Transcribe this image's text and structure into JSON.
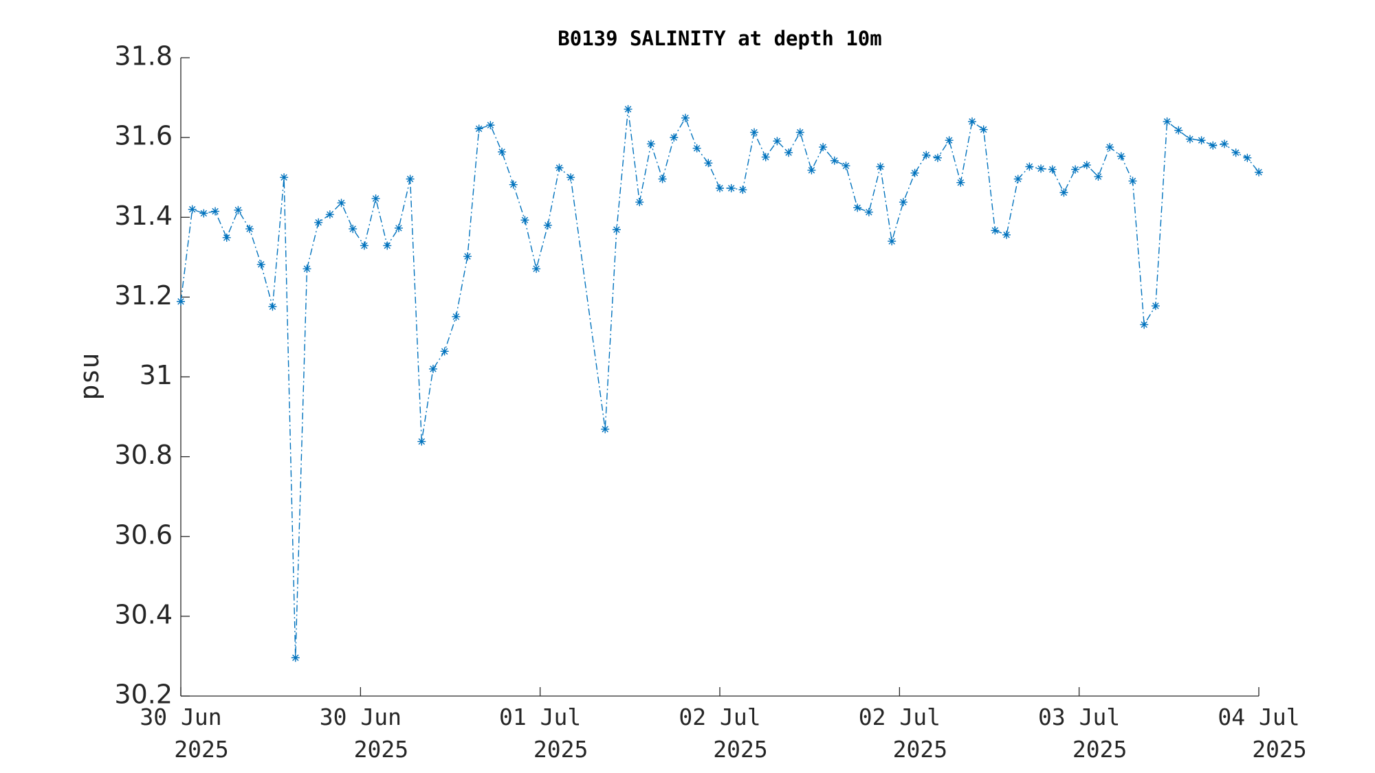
{
  "chart_data": {
    "type": "line",
    "title": "B0139 SALINITY at depth 10m",
    "ylabel": "psu",
    "x": [
      0,
      1,
      2,
      3,
      4,
      5,
      6,
      7,
      8,
      9,
      10,
      11,
      12,
      13,
      14,
      15,
      16,
      17,
      18,
      19,
      20,
      21,
      22,
      23,
      24,
      25,
      26,
      27,
      28,
      29,
      30,
      31,
      32,
      33,
      34,
      37,
      38,
      39,
      40,
      41,
      42,
      43,
      44,
      45,
      46,
      47,
      48,
      49,
      50,
      51,
      52,
      53,
      54,
      55,
      56,
      57,
      58,
      59,
      60,
      61,
      62,
      63,
      64,
      65,
      66,
      67,
      68,
      69,
      70,
      71,
      72,
      73,
      74,
      75,
      76,
      77,
      78,
      79,
      80,
      81,
      82,
      83,
      84,
      85,
      86,
      87,
      88,
      89,
      90,
      91,
      92,
      93,
      94
    ],
    "series": [
      {
        "color": "#0072bd",
        "values": [
          31.189,
          31.42,
          31.41,
          31.415,
          31.349,
          31.418,
          31.371,
          31.282,
          31.176,
          31.5,
          30.296,
          31.271,
          31.387,
          31.407,
          31.436,
          31.371,
          31.329,
          31.447,
          31.329,
          31.373,
          31.496,
          30.838,
          31.02,
          31.064,
          31.151,
          31.302,
          31.622,
          31.631,
          31.564,
          31.482,
          31.393,
          31.271,
          31.38,
          31.524,
          31.5,
          30.869,
          31.369,
          31.671,
          31.438,
          31.584,
          31.496,
          31.6,
          31.649,
          31.573,
          31.536,
          31.473,
          31.473,
          31.469,
          31.613,
          31.551,
          31.591,
          31.562,
          31.613,
          31.518,
          31.576,
          31.542,
          31.529,
          31.424,
          31.413,
          31.527,
          31.34,
          31.438,
          31.511,
          31.556,
          31.549,
          31.593,
          31.487,
          31.64,
          31.62,
          31.367,
          31.356,
          31.496,
          31.527,
          31.522,
          31.52,
          31.462,
          31.52,
          31.531,
          31.502,
          31.576,
          31.553,
          31.491,
          31.131,
          31.178,
          31.64,
          31.618,
          31.596,
          31.593,
          31.58,
          31.584,
          31.562,
          31.549,
          31.513
        ]
      }
    ],
    "xlim": [
      0,
      94
    ],
    "xticks": [
      {
        "value": 0,
        "label": [
          "30 Jun",
          "2025"
        ]
      },
      {
        "value": 15.67,
        "label": [
          "30 Jun",
          "2025"
        ]
      },
      {
        "value": 31.33,
        "label": [
          "01 Jul",
          "2025"
        ]
      },
      {
        "value": 47,
        "label": [
          "02 Jul",
          "2025"
        ]
      },
      {
        "value": 62.67,
        "label": [
          "02 Jul",
          "2025"
        ]
      },
      {
        "value": 78.33,
        "label": [
          "03 Jul",
          "2025"
        ]
      },
      {
        "value": 94,
        "label": [
          "04 Jul",
          "2025"
        ]
      }
    ],
    "ylim": [
      30.2,
      31.8
    ],
    "yticks": [
      30.2,
      30.4,
      30.6,
      30.8,
      31,
      31.2,
      31.4,
      31.6,
      31.8
    ]
  }
}
